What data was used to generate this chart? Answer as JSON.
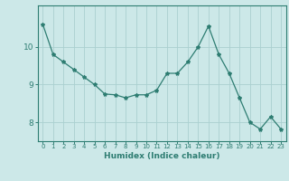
{
  "x": [
    0,
    1,
    2,
    3,
    4,
    5,
    6,
    7,
    8,
    9,
    10,
    11,
    12,
    13,
    14,
    15,
    16,
    17,
    18,
    19,
    20,
    21,
    22,
    23
  ],
  "y": [
    10.6,
    9.8,
    9.6,
    9.4,
    9.2,
    9.0,
    8.75,
    8.73,
    8.65,
    8.73,
    8.73,
    8.85,
    9.3,
    9.3,
    9.6,
    10.0,
    10.55,
    9.8,
    9.3,
    8.65,
    8.0,
    7.82,
    8.15,
    7.82
  ],
  "line_color": "#2e7d72",
  "marker": "*",
  "marker_size": 3,
  "bg_color": "#cce8e8",
  "grid_color": "#aad0d0",
  "xlabel": "Humidex (Indice chaleur)",
  "ylim": [
    7.5,
    11.1
  ],
  "xlim": [
    -0.5,
    23.5
  ],
  "yticks": [
    8,
    9,
    10
  ],
  "xticks": [
    0,
    1,
    2,
    3,
    4,
    5,
    6,
    7,
    8,
    9,
    10,
    11,
    12,
    13,
    14,
    15,
    16,
    17,
    18,
    19,
    20,
    21,
    22,
    23
  ]
}
